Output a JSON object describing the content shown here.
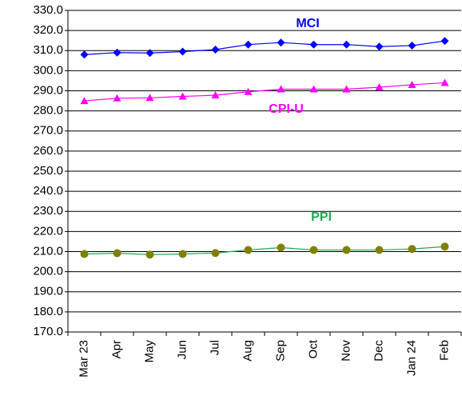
{
  "chart_data": {
    "type": "line",
    "categories": [
      "Mar 23",
      "Apr",
      "May",
      "Jun",
      "Jul",
      "Aug",
      "Sep",
      "Oct",
      "Nov",
      "Dec",
      "Jan 24",
      "Feb"
    ],
    "series": [
      {
        "name": "MCI",
        "color": "#0000ff",
        "marker_color": "#0000ff",
        "marker": "diamond",
        "values": [
          308.0,
          309.0,
          308.8,
          309.5,
          310.5,
          313.0,
          314.0,
          313.0,
          313.0,
          312.0,
          312.5,
          314.8
        ]
      },
      {
        "name": "CPI-U",
        "color": "#ff00ff",
        "marker_color": "#ff00ff",
        "marker": "triangle",
        "values": [
          285.0,
          286.3,
          286.5,
          287.2,
          287.8,
          289.5,
          290.8,
          290.8,
          290.8,
          291.8,
          293.0,
          294.0
        ]
      },
      {
        "name": "PPI",
        "color": "#22aa55",
        "marker_color": "#808000",
        "marker": "circle",
        "values": [
          208.8,
          209.2,
          208.5,
          208.8,
          209.3,
          210.8,
          212.0,
          210.8,
          210.8,
          210.8,
          211.3,
          212.5
        ]
      }
    ],
    "ylim": [
      170,
      330
    ],
    "yticks": [
      {
        "value": 170,
        "label": "170.0"
      },
      {
        "value": 180,
        "label": "180.0"
      },
      {
        "value": 190,
        "label": "190.0"
      },
      {
        "value": 200,
        "label": "200.0"
      },
      {
        "value": 210,
        "label": "210.0"
      },
      {
        "value": 220,
        "label": "220.0"
      },
      {
        "value": 230,
        "label": "230.0"
      },
      {
        "value": 240,
        "label": "240.0"
      },
      {
        "value": 250,
        "label": "250.0"
      },
      {
        "value": 260,
        "label": "260.0"
      },
      {
        "value": 270,
        "label": "270.0"
      },
      {
        "value": 280,
        "label": "280.0"
      },
      {
        "value": 290,
        "label": "290.0"
      },
      {
        "value": 300,
        "label": "300.0"
      },
      {
        "value": 310,
        "label": "310.0"
      },
      {
        "value": 320,
        "label": "320.0"
      },
      {
        "value": 330,
        "label": "330.0"
      }
    ],
    "grid": true
  }
}
